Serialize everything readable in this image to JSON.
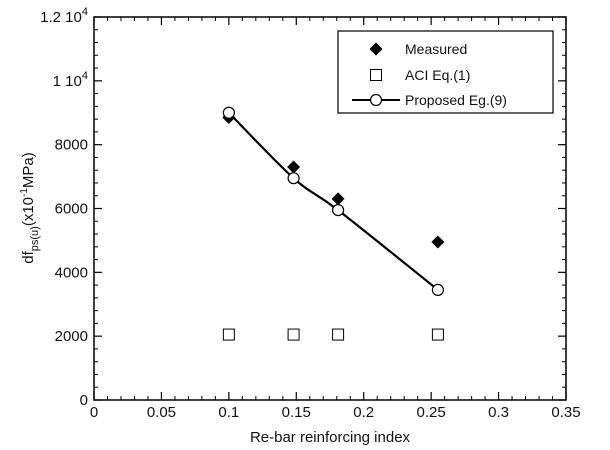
{
  "chart_data": {
    "type": "scatter",
    "xlabel": "Re-bar reinforcing index",
    "ylabel": {
      "base": "df",
      "subscript": "ps(u)",
      "unit_prefix": "(x10",
      "unit_exp": "-1",
      "unit_suffix": "MPa)"
    },
    "xlim": [
      0,
      0.35
    ],
    "ylim": [
      0,
      12000
    ],
    "x_ticks": [
      {
        "value": 0,
        "label": "0"
      },
      {
        "value": 0.05,
        "label": "0.05"
      },
      {
        "value": 0.1,
        "label": "0.1"
      },
      {
        "value": 0.15,
        "label": "0.15"
      },
      {
        "value": 0.2,
        "label": "0.2"
      },
      {
        "value": 0.25,
        "label": "0.25"
      },
      {
        "value": 0.3,
        "label": "0.3"
      },
      {
        "value": 0.35,
        "label": "0.35"
      }
    ],
    "y_ticks": [
      {
        "value": 0,
        "label": "0"
      },
      {
        "value": 2000,
        "label": "2000"
      },
      {
        "value": 4000,
        "label": "4000"
      },
      {
        "value": 6000,
        "label": "6000"
      },
      {
        "value": 8000,
        "label": "8000"
      },
      {
        "value": 10000,
        "label": "1 10",
        "exp": "4"
      },
      {
        "value": 12000,
        "label": "1.2 10",
        "exp": "4"
      }
    ],
    "grid": false,
    "legend_position": "top-right",
    "series": [
      {
        "name": "Measured",
        "marker": "diamond-filled",
        "x": [
          0.1,
          0.148,
          0.181,
          0.255
        ],
        "y": [
          8850,
          7300,
          6300,
          4950
        ]
      },
      {
        "name": "ACI  Eq.(1)",
        "marker": "square-open",
        "x": [
          0.1,
          0.148,
          0.181,
          0.255
        ],
        "y": [
          2050,
          2050,
          2050,
          2050
        ]
      },
      {
        "name": "Proposed Eg.(9)",
        "marker": "circle-open",
        "line": true,
        "x": [
          0.1,
          0.148,
          0.181,
          0.255
        ],
        "y": [
          9000,
          6950,
          5950,
          3450
        ]
      }
    ]
  }
}
